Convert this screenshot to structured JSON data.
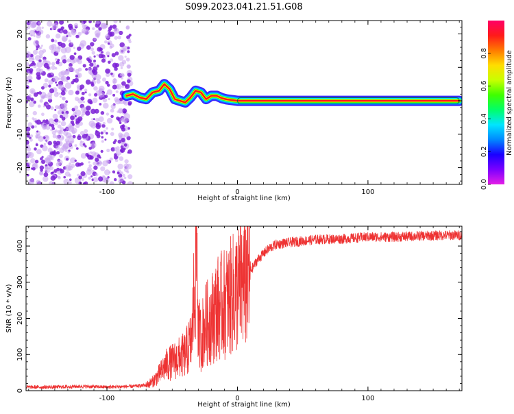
{
  "title": "S099.2023.041.21.51.G08",
  "colors": {
    "background": "#ffffff",
    "axis": "#000000",
    "snr_line": "#ee3333",
    "dot_purple": "#7a1fd6",
    "dot_light": "#c9a3f0"
  },
  "chart_data": [
    {
      "type": "heatmap",
      "title": "",
      "xlabel": "Height of straight line (km)",
      "ylabel": "Frequency (Hz)",
      "xlim": [
        -162,
        172
      ],
      "ylim": [
        -25,
        24
      ],
      "xticks": [
        -100,
        0,
        100
      ],
      "xtick_labels": [
        "-100",
        "0",
        "100"
      ],
      "yticks": [
        20,
        10,
        0,
        -10,
        -20
      ],
      "ytick_labels": [
        "20",
        "10",
        "0",
        "-10",
        "-20"
      ],
      "colorbar": {
        "label": "Normalized spectral amplitude",
        "range": [
          0.0,
          1.0
        ],
        "ticks": [
          0.0,
          0.2,
          0.4,
          0.6,
          0.8
        ],
        "tick_labels": [
          "0.0",
          "0.2",
          "0.4",
          "0.6",
          "0.8"
        ],
        "colormap": [
          "#e41ee6",
          "#7b00ff",
          "#1a00ff",
          "#0088ff",
          "#00e5ff",
          "#00ff6a",
          "#3fff00",
          "#c8ff00",
          "#ffdd00",
          "#ff7a00",
          "#ff1a1a",
          "#ff0066"
        ]
      },
      "series": [
        {
          "description_role": "carrier ridge",
          "x": [
            -85,
            -80,
            -75,
            -70,
            -65,
            -60,
            -56,
            -52,
            -48,
            -44,
            -40,
            -36,
            -32,
            -28,
            -24,
            -20,
            -16,
            -12,
            -8,
            -4,
            0,
            20,
            60,
            100,
            140,
            170
          ],
          "y": [
            1.5,
            2.0,
            1.0,
            0.5,
            2.5,
            3.0,
            5.0,
            3.5,
            0.5,
            0.0,
            -0.5,
            1.0,
            3.0,
            2.5,
            0.5,
            1.5,
            1.5,
            0.8,
            0.4,
            0.2,
            0.0,
            0.0,
            0.0,
            0.0,
            0.0,
            0.0
          ]
        }
      ],
      "noise_region_x": [
        -162,
        -82
      ]
    },
    {
      "type": "line",
      "title": "",
      "xlabel": "Height of straight line (km)",
      "ylabel": "SNR (10 * v/v)",
      "xlim": [
        -162,
        172
      ],
      "ylim": [
        0,
        455
      ],
      "xticks": [
        -100,
        0,
        100
      ],
      "xtick_labels": [
        "-100",
        "0",
        "100"
      ],
      "yticks": [
        0,
        100,
        200,
        300,
        400
      ],
      "ytick_labels": [
        "0",
        "100",
        "200",
        "300",
        "400"
      ],
      "series": [
        {
          "x": [
            -160,
            -140,
            -120,
            -100,
            -80,
            -70,
            -65,
            -60,
            -55,
            -50,
            -45,
            -40,
            -35,
            -31,
            -30,
            -28,
            -25,
            -20,
            -15,
            -10,
            -5,
            0,
            5,
            10,
            15,
            20,
            25,
            30,
            40,
            60,
            80,
            100,
            120,
            140,
            160,
            170
          ],
          "y": [
            10,
            10,
            12,
            10,
            12,
            15,
            25,
            45,
            70,
            80,
            90,
            100,
            140,
            435,
            160,
            145,
            180,
            200,
            230,
            240,
            260,
            280,
            300,
            330,
            360,
            380,
            395,
            405,
            410,
            418,
            420,
            425,
            425,
            428,
            430,
            430
          ]
        }
      ]
    }
  ]
}
